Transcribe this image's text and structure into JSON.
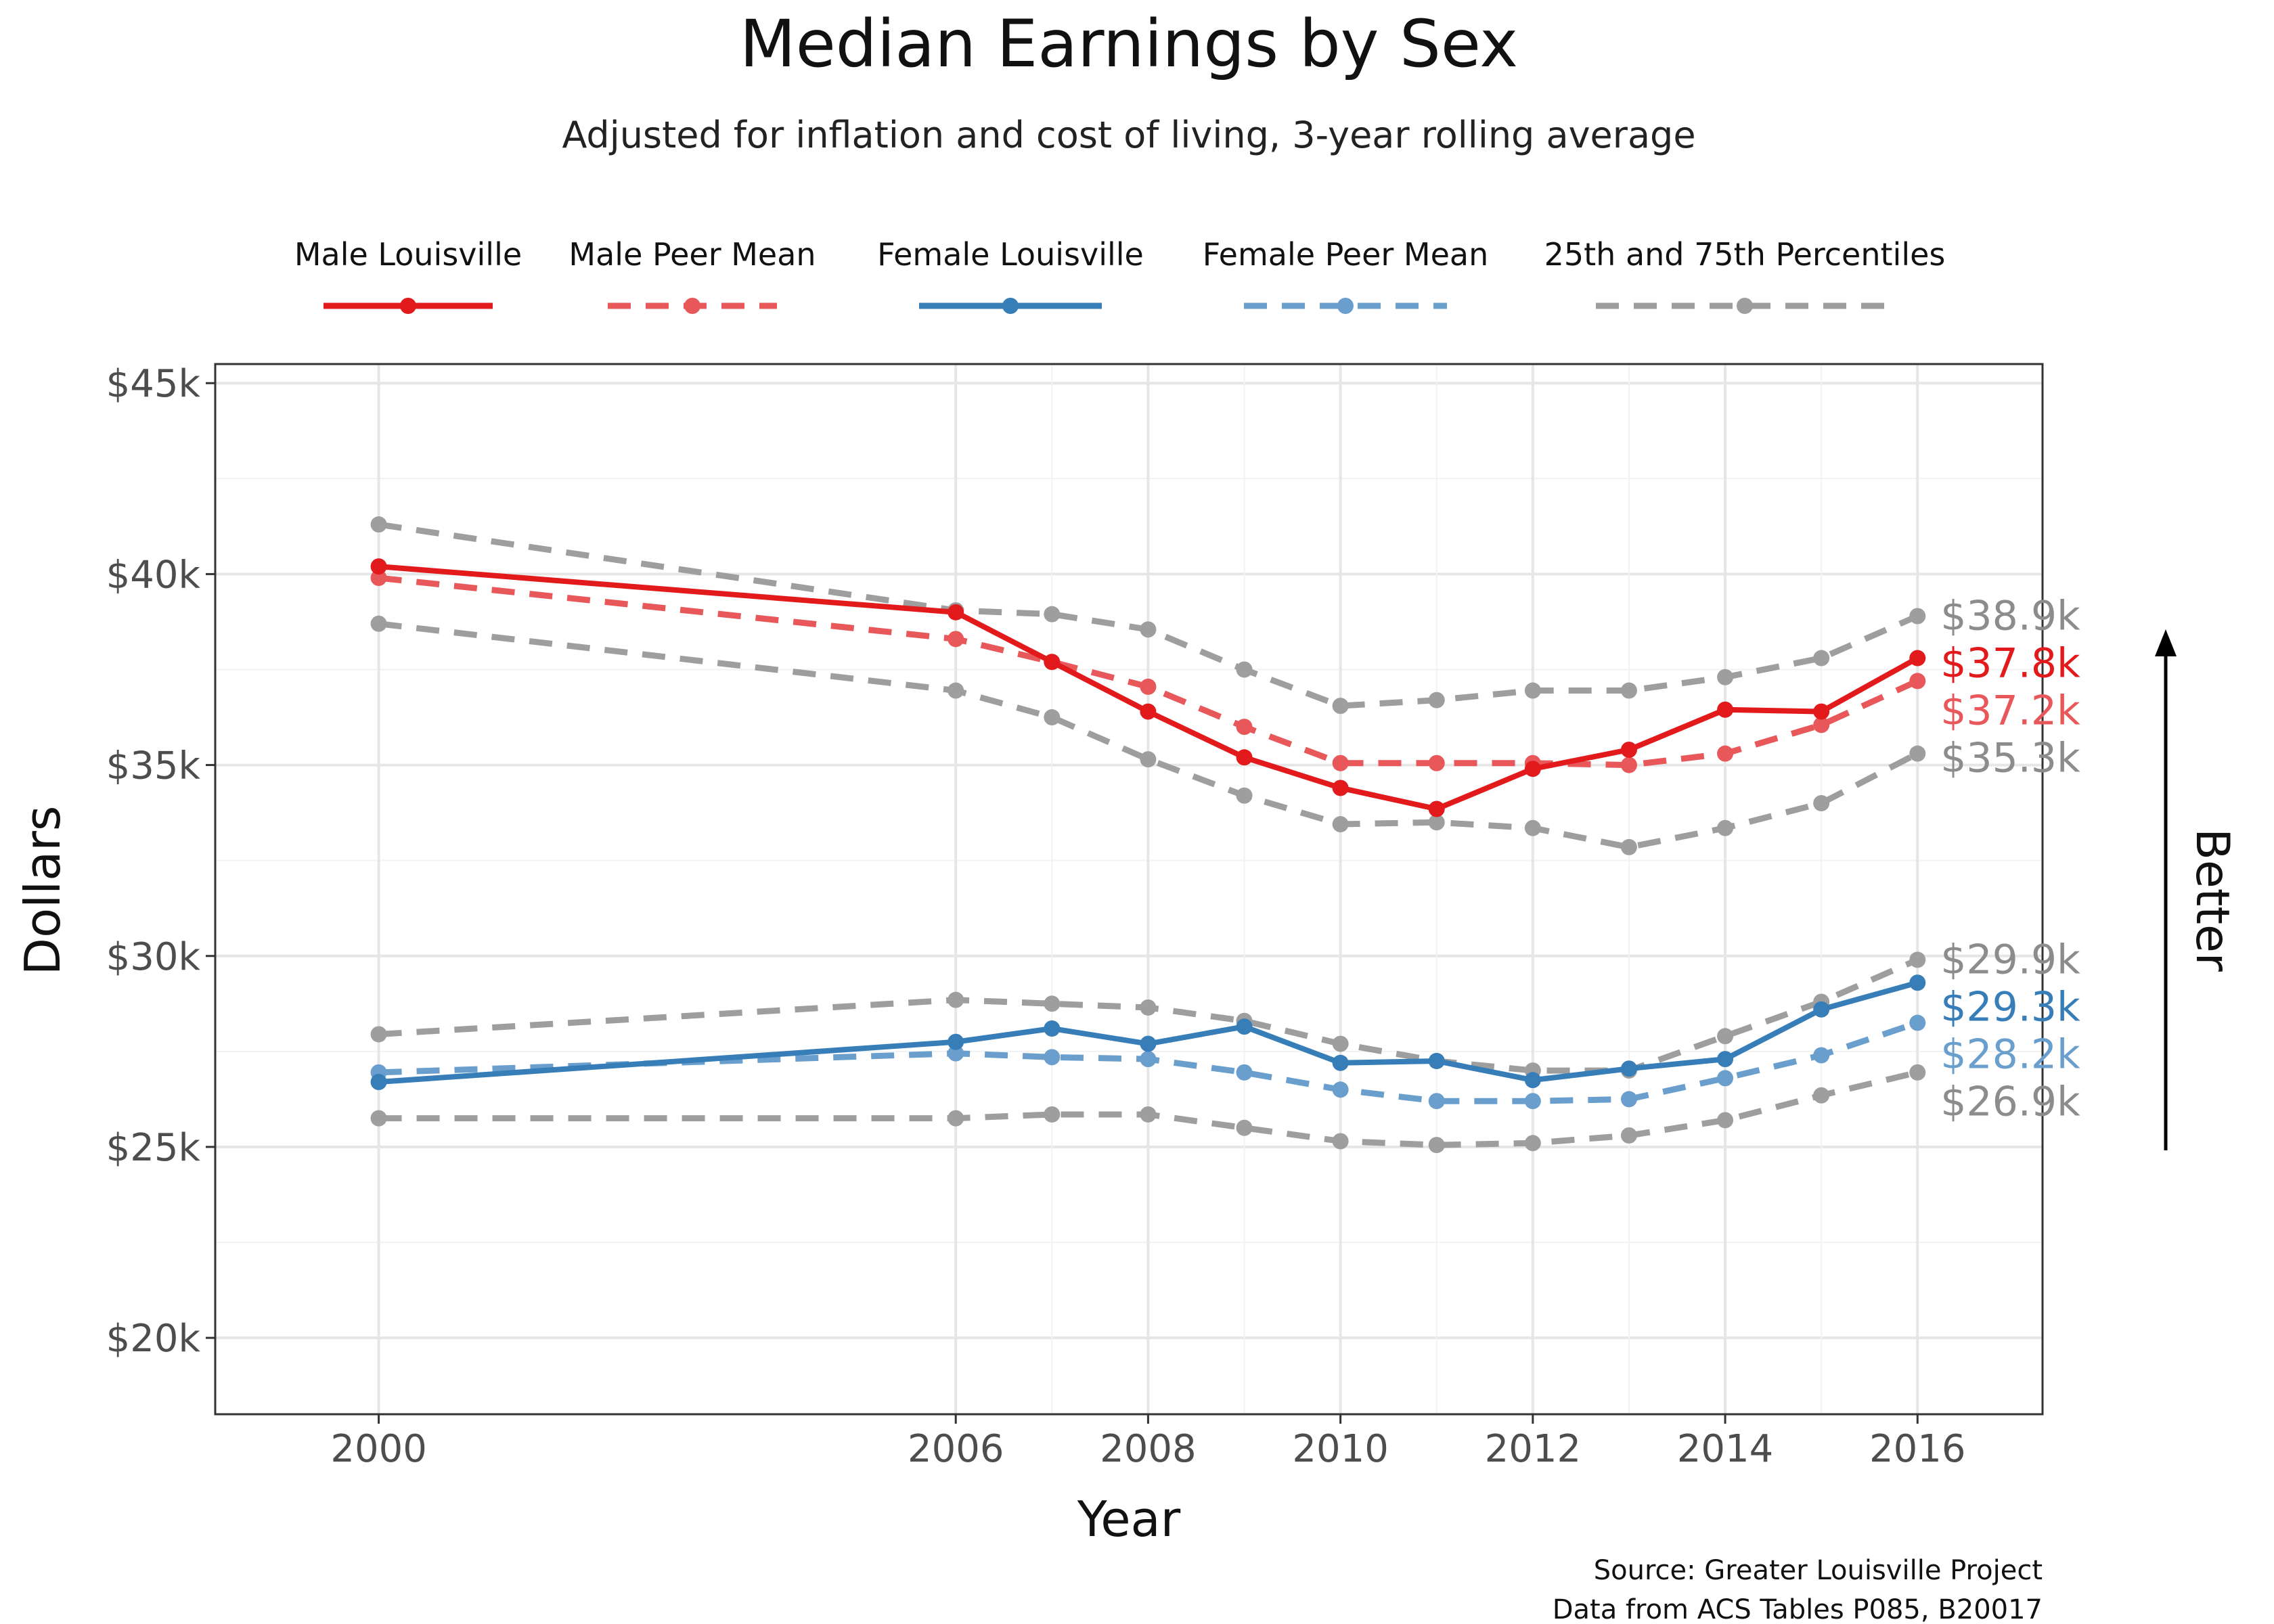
{
  "chart_data": {
    "type": "line",
    "title": "Median Earnings by Sex",
    "subtitle": "Adjusted for inflation and cost of living, 3-year rolling average",
    "xlabel": "Year",
    "ylabel": "Dollars",
    "x": [
      2000,
      2006,
      2007,
      2008,
      2009,
      2010,
      2011,
      2012,
      2013,
      2014,
      2015,
      2016
    ],
    "x_ticks": [
      2000,
      2006,
      2008,
      2010,
      2012,
      2014,
      2016
    ],
    "x_tick_labels": [
      "2000",
      "2006",
      "2008",
      "2010",
      "2012",
      "2014",
      "2016"
    ],
    "xlim": [
      1998.3,
      2017.3
    ],
    "ylim": [
      18000,
      45500
    ],
    "y_ticks": [
      20000,
      25000,
      30000,
      35000,
      40000,
      45000
    ],
    "y_tick_labels": [
      "$20k",
      "$25k",
      "$30k",
      "$35k",
      "$40k",
      "$45k"
    ],
    "grid": true,
    "legend_position": "top",
    "legend": [
      {
        "label": "Male Louisville",
        "color": "#e31a1c",
        "style": "solid"
      },
      {
        "label": "Male Peer Mean",
        "color": "#e8575a",
        "style": "dashed"
      },
      {
        "label": "Female Louisville",
        "color": "#377eb8",
        "style": "solid"
      },
      {
        "label": "Female Peer Mean",
        "color": "#6a9fcd",
        "style": "dashed"
      },
      {
        "label": "25th and 75th Percentiles",
        "color": "#9e9e9e",
        "style": "dashed"
      }
    ],
    "series": [
      {
        "name": "Male Louisville",
        "kind": "solid",
        "color": "#e31a1c",
        "values": [
          40200,
          39000,
          37700,
          36400,
          35200,
          34400,
          33850,
          34900,
          35400,
          36450,
          36400,
          37800
        ],
        "end_label": "$37.8k"
      },
      {
        "name": "Male Peer Mean",
        "kind": "dashed",
        "color": "#e8575a",
        "values": [
          39900,
          38300,
          37700,
          37050,
          36000,
          35050,
          35050,
          35050,
          35000,
          35300,
          36050,
          37200
        ],
        "end_label": "$37.2k"
      },
      {
        "name": "Female Louisville",
        "kind": "solid",
        "color": "#377eb8",
        "values": [
          26700,
          27750,
          28100,
          27700,
          28150,
          27200,
          27250,
          26750,
          27050,
          27300,
          28600,
          29300
        ],
        "end_label": "$29.3k"
      },
      {
        "name": "Female Peer Mean",
        "kind": "dashed",
        "color": "#6a9fcd",
        "values": [
          26950,
          27450,
          27350,
          27300,
          26950,
          26500,
          26200,
          26200,
          26250,
          26800,
          27400,
          28250
        ],
        "end_label": "$28.2k"
      },
      {
        "group": "25th and 75th Percentiles",
        "kind": "dashed",
        "color": "#9e9e9e",
        "values": [
          41300,
          39050,
          38950,
          38550,
          37500,
          36550,
          36700,
          36950,
          36950,
          37300,
          37800,
          38900
        ],
        "end_label": "$38.9k"
      },
      {
        "group": "25th and 75th Percentiles",
        "kind": "dashed",
        "color": "#9e9e9e",
        "values": [
          38700,
          36950,
          36250,
          35150,
          34200,
          33450,
          33500,
          33350,
          32850,
          33350,
          34000,
          35300
        ],
        "end_label": "$35.3k"
      },
      {
        "group": "25th and 75th Percentiles",
        "kind": "dashed",
        "color": "#9e9e9e",
        "values": [
          27950,
          28850,
          28750,
          28650,
          28300,
          27700,
          27250,
          27000,
          27000,
          27900,
          28800,
          29900
        ],
        "end_label": "$29.9k"
      },
      {
        "group": "25th and 75th Percentiles",
        "kind": "dashed",
        "color": "#9e9e9e",
        "values": [
          25750,
          25750,
          25850,
          25850,
          25500,
          25150,
          25050,
          25100,
          25300,
          25700,
          26350,
          26950
        ],
        "end_label": "$26.9k"
      }
    ],
    "side_label": "Better",
    "source_lines": [
      "Source: Greater Louisville Project",
      "Data from ACS Tables P085, B20017"
    ]
  }
}
